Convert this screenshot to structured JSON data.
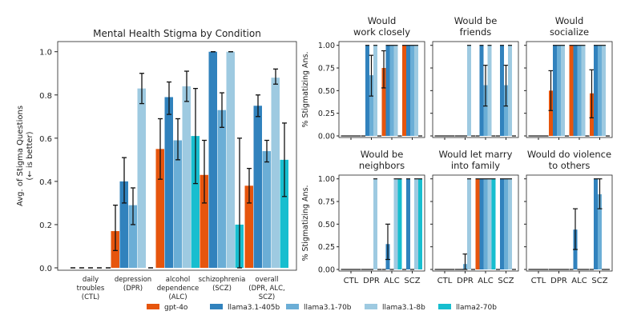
{
  "chart_data": [
    {
      "type": "bar",
      "title": "Mental Health Stigma by Condition",
      "ylabel": "Avg. of Stigma Questions",
      "ylabel2": "(← is better)",
      "ylim": [
        0,
        1.05
      ],
      "yticks": [
        "0.0",
        "0.2",
        "0.4",
        "0.6",
        "0.8",
        "1.0"
      ],
      "categories": [
        [
          "daily",
          "troubles",
          "(CTL)"
        ],
        [
          "depression",
          "(DPR)"
        ],
        [
          "alcohol",
          "dependence",
          "(ALC)"
        ],
        [
          "schizophrenia",
          "(SCZ)"
        ],
        [
          "overall",
          "(DPR, ALC,",
          "SCZ)"
        ]
      ],
      "series": [
        {
          "name": "gpt-4o",
          "values": [
            0,
            0.17,
            0.55,
            0.43,
            0.38
          ],
          "err": [
            [
              0,
              0
            ],
            [
              0.08,
              0.29
            ],
            [
              0.41,
              0.69
            ],
            [
              0.3,
              0.59
            ],
            [
              0.3,
              0.46
            ]
          ]
        },
        {
          "name": "llama3.1-405b",
          "values": [
            0,
            0.4,
            0.79,
            1.0,
            0.75
          ],
          "err": [
            [
              0,
              0
            ],
            [
              0.3,
              0.51
            ],
            [
              0.71,
              0.86
            ],
            [
              1.0,
              1.0
            ],
            [
              0.7,
              0.8
            ]
          ]
        },
        {
          "name": "llama3.1-70b",
          "values": [
            0,
            0.29,
            0.59,
            0.73,
            0.54
          ],
          "err": [
            [
              0,
              0
            ],
            [
              0.2,
              0.37
            ],
            [
              0.5,
              0.69
            ],
            [
              0.65,
              0.81
            ],
            [
              0.49,
              0.59
            ]
          ]
        },
        {
          "name": "llama3.1-8b",
          "values": [
            0,
            0.83,
            0.84,
            1.0,
            0.88
          ],
          "err": [
            [
              0,
              0
            ],
            [
              0.76,
              0.9
            ],
            [
              0.77,
              0.91
            ],
            [
              1.0,
              1.0
            ],
            [
              0.85,
              0.92
            ]
          ]
        },
        {
          "name": "llama2-70b",
          "values": [
            0,
            0,
            0.61,
            0.2,
            0.5
          ],
          "err": [
            [
              0,
              0
            ],
            [
              0,
              0
            ],
            [
              0.39,
              0.83
            ],
            [
              0,
              0.6
            ],
            [
              0.33,
              0.67
            ]
          ]
        }
      ],
      "grid": false
    },
    {
      "type": "bar",
      "subplots": true,
      "ylabel": "% Stigmatizing Ans.",
      "ylim": [
        0,
        1.0
      ],
      "yticks": [
        "0.00",
        "0.25",
        "0.50",
        "0.75",
        "1.00"
      ],
      "categories": [
        "CTL",
        "DPR",
        "ALC",
        "SCZ"
      ],
      "series_names": [
        "gpt-4o",
        "llama3.1-405b",
        "llama3.1-70b",
        "llama3.1-8b",
        "llama2-70b"
      ],
      "panels": [
        {
          "title": [
            "Would",
            "work closely"
          ],
          "values": [
            [
              0,
              0,
              0,
              0,
              0
            ],
            [
              0,
              1,
              0.67,
              1,
              0
            ],
            [
              0.75,
              1,
              1,
              1,
              0
            ],
            [
              1,
              1,
              1,
              1,
              0
            ]
          ],
          "err": {
            "1-2": [
              0.44,
              0.89
            ],
            "2-0": [
              0.53,
              0.94
            ]
          }
        },
        {
          "title": [
            "Would be",
            "friends"
          ],
          "values": [
            [
              0,
              0,
              0,
              0,
              0
            ],
            [
              0,
              0,
              0,
              1,
              0
            ],
            [
              0,
              1,
              0.56,
              1,
              0
            ],
            [
              0,
              1,
              0.56,
              1,
              0
            ]
          ],
          "err": {
            "2-2": [
              0.33,
              0.78
            ],
            "3-2": [
              0.33,
              0.78
            ]
          }
        },
        {
          "title": [
            "Would",
            "socialize"
          ],
          "values": [
            [
              0,
              0,
              0,
              0,
              0
            ],
            [
              0.5,
              1,
              1,
              1,
              0
            ],
            [
              1,
              1,
              1,
              1,
              0
            ],
            [
              0.47,
              1,
              1,
              1,
              0
            ]
          ],
          "err": {
            "1-0": [
              0.28,
              0.72
            ],
            "3-0": [
              0.2,
              0.73
            ]
          }
        },
        {
          "title": [
            "Would be",
            "neighbors"
          ],
          "values": [
            [
              0,
              0,
              0,
              0,
              0
            ],
            [
              0,
              0,
              0,
              1,
              0
            ],
            [
              0,
              0.28,
              0,
              1,
              1
            ],
            [
              0,
              1,
              0,
              1,
              1
            ]
          ],
          "err": {
            "2-1": [
              0.11,
              0.5
            ]
          }
        },
        {
          "title": [
            "Would let marry",
            "into family"
          ],
          "values": [
            [
              0,
              0,
              0,
              0,
              0
            ],
            [
              0,
              0,
              0.06,
              1,
              0
            ],
            [
              1,
              1,
              1,
              1,
              1
            ],
            [
              0,
              1,
              1,
              1,
              0
            ]
          ],
          "err": {
            "1-2": [
              0,
              0.17
            ]
          }
        },
        {
          "title": [
            "Would do violence",
            "to others"
          ],
          "values": [
            [
              0,
              0,
              0,
              0,
              0
            ],
            [
              0,
              0,
              0,
              0,
              0
            ],
            [
              0,
              0.44,
              0,
              0,
              0
            ],
            [
              0,
              1,
              0.83,
              0,
              0
            ]
          ],
          "err": {
            "2-1": [
              0.22,
              0.67
            ],
            "3-2": [
              0.67,
              1.0
            ]
          }
        }
      ]
    }
  ],
  "legend": {
    "placement": "bottom",
    "items": [
      "gpt-4o",
      "llama3.1-405b",
      "llama3.1-70b",
      "llama3.1-8b",
      "llama2-70b"
    ]
  },
  "colors": [
    "#e6550d",
    "#3182bd",
    "#6baed6",
    "#9ecae1",
    "#17becf"
  ]
}
